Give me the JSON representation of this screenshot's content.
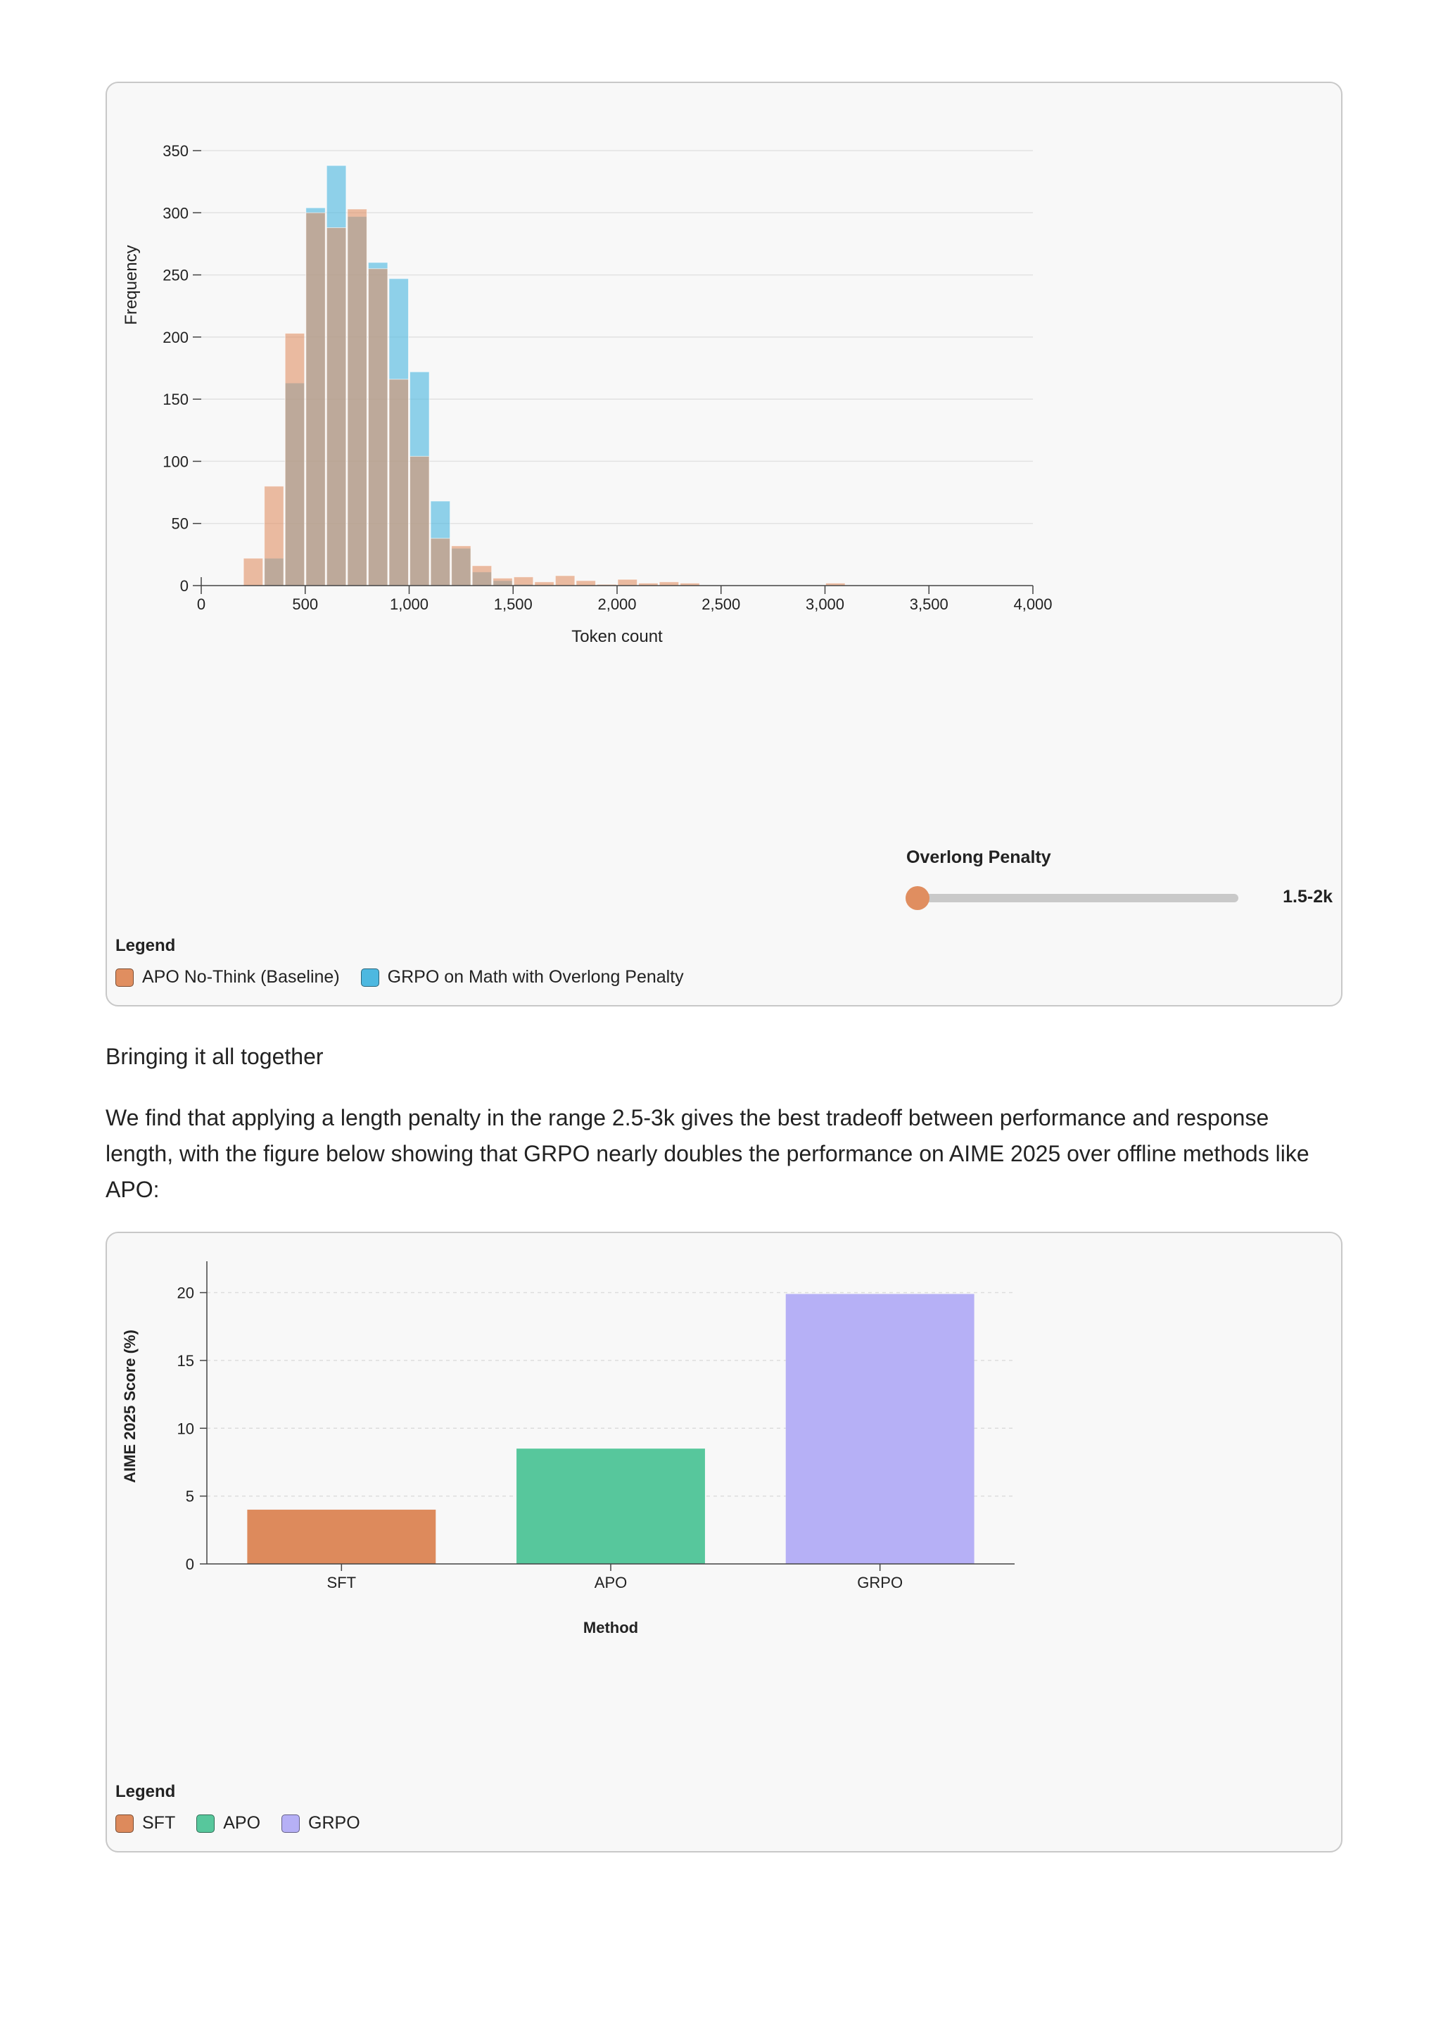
{
  "figure1": {
    "xlabel": "Token count",
    "ylabel": "Frequency",
    "slider": {
      "label": "Overlong Penalty",
      "value_text": "1.5-2k",
      "position": 0.0
    },
    "legend": {
      "title": "Legend",
      "items": [
        {
          "label": "APO No-Think (Baseline)",
          "color": "#e08e60"
        },
        {
          "label": "GRPO on Math with Overlong Penalty",
          "color": "#4db8e0"
        }
      ]
    }
  },
  "heading": "Bringing it all together",
  "body_text": "We find that applying a length penalty in the range 2.5-3k gives the best tradeoff between performance and response length, with the figure below showing that GRPO nearly doubles the performance on AIME 2025 over offline methods like APO:",
  "figure2": {
    "xlabel": "Method",
    "ylabel": "AIME 2025 Score (%)",
    "legend": {
      "title": "Legend",
      "items": [
        {
          "label": "SFT",
          "color": "#dd8a5c"
        },
        {
          "label": "APO",
          "color": "#57c79c"
        },
        {
          "label": "GRPO",
          "color": "#b6b0f6"
        }
      ]
    }
  },
  "chart_data": [
    {
      "type": "histogram",
      "title": "",
      "xlabel": "Token count",
      "ylabel": "Frequency",
      "xlim": [
        0,
        4000
      ],
      "ylim": [
        0,
        350
      ],
      "xticks": [
        0,
        500,
        1000,
        1500,
        2000,
        2500,
        3000,
        3500,
        4000
      ],
      "xtick_labels": [
        "0",
        "500",
        "1,000",
        "1,500",
        "2,000",
        "2,500",
        "3,000",
        "3,500",
        "4,000"
      ],
      "yticks": [
        0,
        50,
        100,
        150,
        200,
        250,
        300,
        350
      ],
      "bin_width": 100,
      "grid": true,
      "legend_position": "bottom-left",
      "series": [
        {
          "name": "APO No-Think (Baseline)",
          "color": "#e08e60",
          "bins": [
            {
              "start": 200,
              "count": 22
            },
            {
              "start": 300,
              "count": 80
            },
            {
              "start": 400,
              "count": 203
            },
            {
              "start": 500,
              "count": 300
            },
            {
              "start": 600,
              "count": 288
            },
            {
              "start": 700,
              "count": 303
            },
            {
              "start": 800,
              "count": 255
            },
            {
              "start": 900,
              "count": 166
            },
            {
              "start": 1000,
              "count": 104
            },
            {
              "start": 1100,
              "count": 38
            },
            {
              "start": 1200,
              "count": 32
            },
            {
              "start": 1300,
              "count": 16
            },
            {
              "start": 1400,
              "count": 6
            },
            {
              "start": 1500,
              "count": 7
            },
            {
              "start": 1600,
              "count": 3
            },
            {
              "start": 1700,
              "count": 8
            },
            {
              "start": 1800,
              "count": 4
            },
            {
              "start": 1900,
              "count": 1
            },
            {
              "start": 2000,
              "count": 5
            },
            {
              "start": 2100,
              "count": 2
            },
            {
              "start": 2200,
              "count": 3
            },
            {
              "start": 2300,
              "count": 2
            },
            {
              "start": 3000,
              "count": 2
            }
          ]
        },
        {
          "name": "GRPO on Math with Overlong Penalty",
          "color": "#4db8e0",
          "bins": [
            {
              "start": 300,
              "count": 22
            },
            {
              "start": 400,
              "count": 163
            },
            {
              "start": 500,
              "count": 304
            },
            {
              "start": 600,
              "count": 338
            },
            {
              "start": 700,
              "count": 297
            },
            {
              "start": 800,
              "count": 260
            },
            {
              "start": 900,
              "count": 247
            },
            {
              "start": 1000,
              "count": 172
            },
            {
              "start": 1100,
              "count": 68
            },
            {
              "start": 1200,
              "count": 30
            },
            {
              "start": 1300,
              "count": 11
            },
            {
              "start": 1400,
              "count": 4
            },
            {
              "start": 1500,
              "count": 1
            }
          ]
        }
      ]
    },
    {
      "type": "bar",
      "title": "",
      "xlabel": "Method",
      "ylabel": "AIME 2025 Score (%)",
      "categories": [
        "SFT",
        "APO",
        "GRPO"
      ],
      "values": [
        4,
        8.5,
        19.9
      ],
      "colors": [
        "#dd8a5c",
        "#57c79c",
        "#b6b0f6"
      ],
      "ylim": [
        0,
        22
      ],
      "yticks": [
        0,
        5,
        10,
        15,
        20
      ],
      "grid": true,
      "legend_position": "bottom-left"
    }
  ]
}
